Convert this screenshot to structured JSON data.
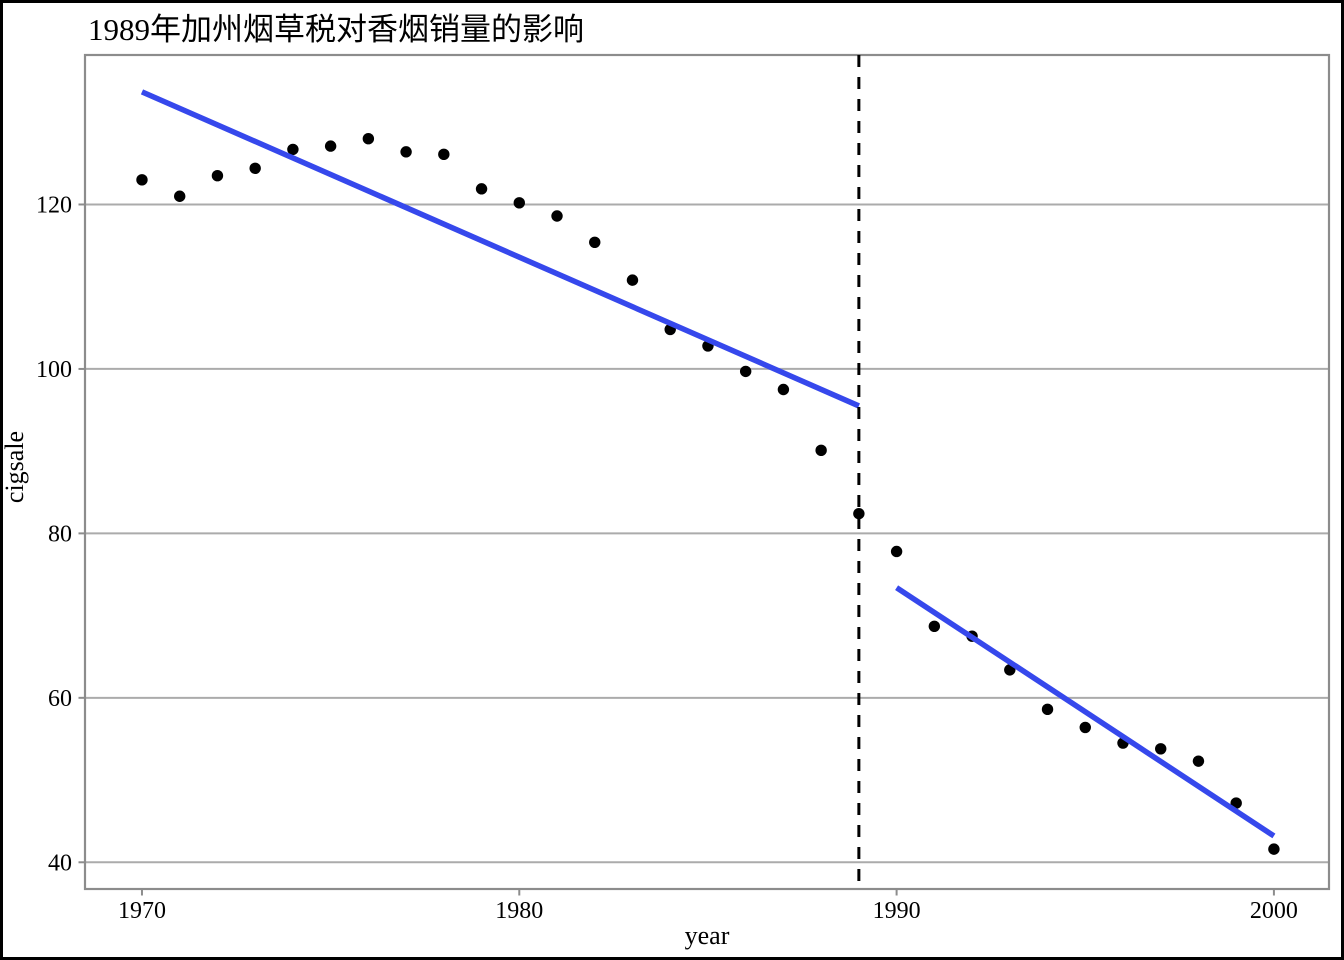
{
  "figure": {
    "title": "1989年加州烟草税对香烟销量的影响",
    "xlabel": "year",
    "ylabel": "cigsale"
  },
  "chart_data": {
    "type": "scatter",
    "title": "1989年加州烟草税对香烟销量的影响",
    "xlabel": "year",
    "ylabel": "cigsale",
    "xlim": [
      1968.49,
      2001.46
    ],
    "ylim": [
      36.75,
      138.18
    ],
    "x_ticks": [
      1970,
      1980,
      1990,
      2000
    ],
    "y_ticks": [
      40,
      60,
      80,
      100,
      120
    ],
    "grid": "horizontal-only",
    "legend": "none",
    "series": [
      {
        "name": "cigsale-observations",
        "type": "scatter",
        "color": "#000000",
        "x": [
          1970,
          1971,
          1972,
          1973,
          1974,
          1975,
          1976,
          1977,
          1978,
          1979,
          1980,
          1981,
          1982,
          1983,
          1984,
          1985,
          1986,
          1987,
          1988,
          1989,
          1990,
          1991,
          1992,
          1993,
          1994,
          1995,
          1996,
          1997,
          1998,
          1999,
          2000
        ],
        "y": [
          123.0,
          121.0,
          123.5,
          124.4,
          126.7,
          127.1,
          128.0,
          126.4,
          126.1,
          121.9,
          120.2,
          118.6,
          115.4,
          110.8,
          104.8,
          102.8,
          99.7,
          97.5,
          90.1,
          82.4,
          77.8,
          68.7,
          67.5,
          63.4,
          58.6,
          56.4,
          54.5,
          53.8,
          52.3,
          47.2,
          41.6
        ]
      },
      {
        "name": "pre-tax-linear-fit",
        "type": "line",
        "color": "#3648EC",
        "x": [
          1970,
          1989
        ],
        "y": [
          133.7,
          95.5
        ]
      },
      {
        "name": "post-tax-linear-fit",
        "type": "line",
        "color": "#3648EC",
        "x": [
          1990,
          2000
        ],
        "y": [
          73.4,
          43.2
        ]
      }
    ],
    "annotations": [
      {
        "name": "intervention-vline",
        "type": "vline",
        "x": 1989,
        "style": "dashed",
        "color": "#000000"
      }
    ]
  },
  "style": {
    "accent_blue": "#3648EC",
    "point_color": "#000000",
    "gridline_color": "#ABABAB",
    "panel_border_color": "#8C8C8C",
    "tick_color": "#8C8C8C",
    "frame_color": "#000000",
    "background": "#FFFFFF"
  }
}
